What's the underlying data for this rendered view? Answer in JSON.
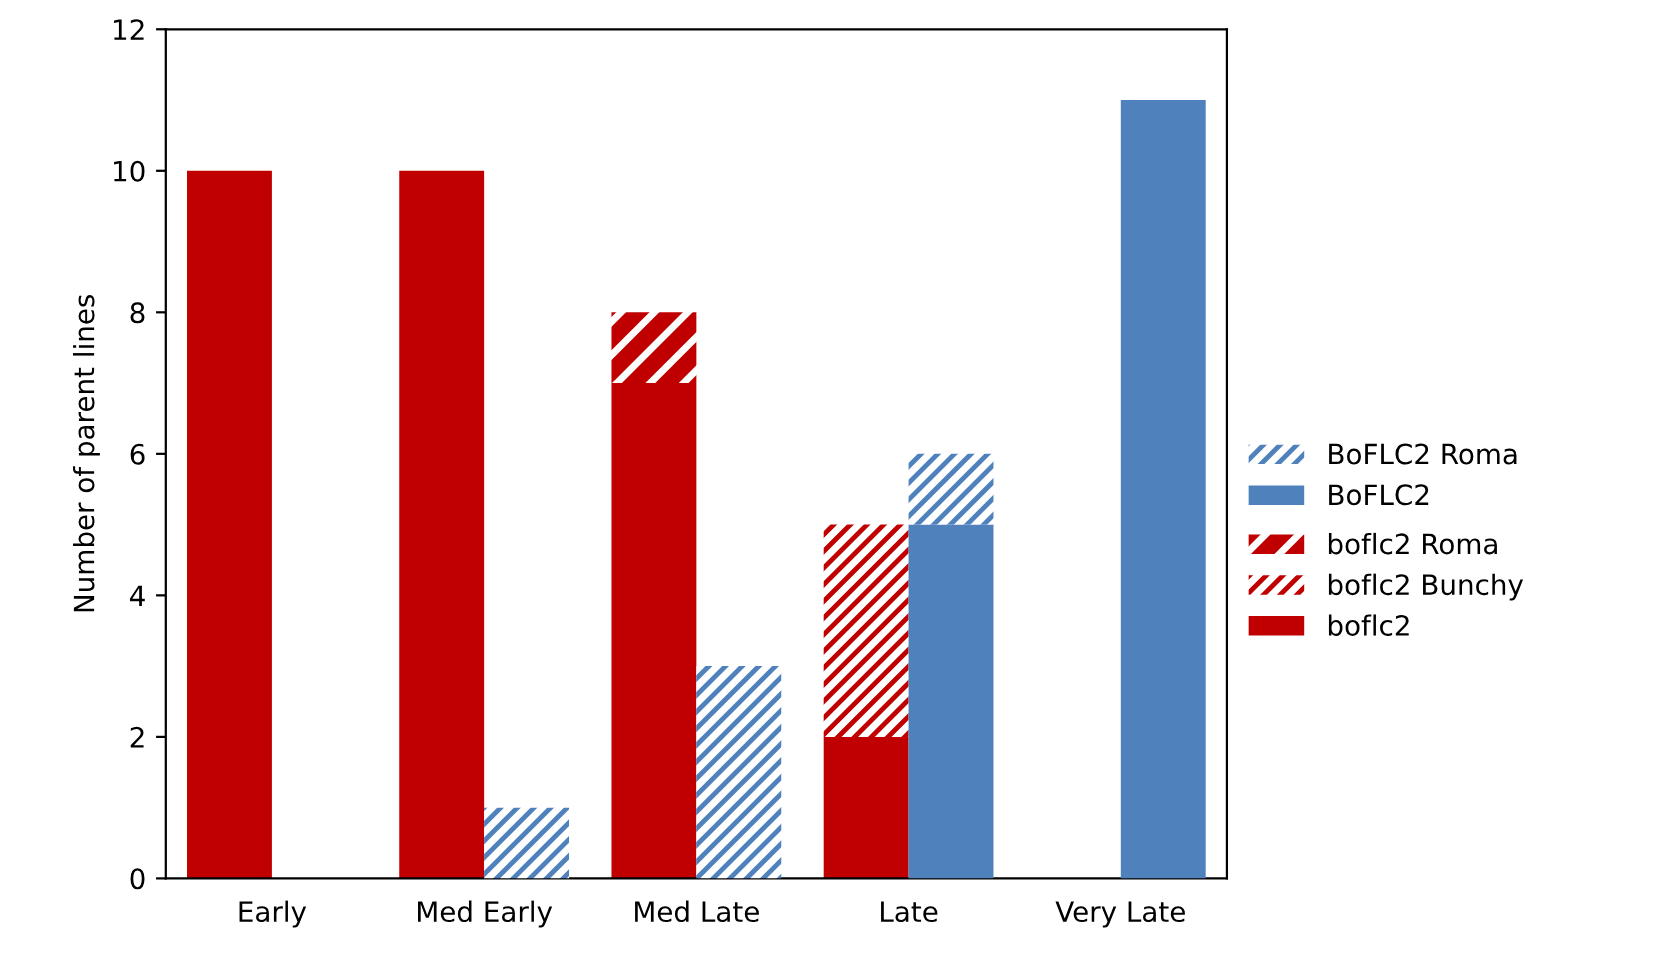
{
  "chart_data": [
    {
      "type": "bar",
      "stacked": true,
      "categories": [
        "Early",
        "Med Early",
        "Med Late",
        "Late",
        "Very Late"
      ],
      "ylabel": "Number of parent lines",
      "ylim": [
        0,
        12
      ],
      "yticks": [
        0,
        2,
        4,
        6,
        8,
        10,
        12
      ],
      "grid": false,
      "legend": "right",
      "series": [
        {
          "name": "boflc2",
          "color": "#c00000",
          "values": [
            10,
            10,
            7,
            2,
            0
          ]
        },
        {
          "name": "boflc2 Bunchy",
          "color": "#c00000",
          "values": [
            0,
            0,
            0,
            3,
            0
          ]
        },
        {
          "name": "boflc2 Roma",
          "color": "#c00000",
          "values": [
            0,
            0,
            1,
            0,
            0
          ]
        }
      ]
    },
    {
      "type": "bar",
      "stacked": true,
      "categories": [
        null,
        null,
        null,
        null,
        null
      ],
      "ylim": [
        0,
        12
      ],
      "yticks": [
        0,
        2,
        4,
        6,
        8,
        10,
        12
      ],
      "grid": false,
      "legend": "right",
      "tick_labels": false,
      "series": [
        {
          "name": "BoFLC2",
          "color": "#4f81bd",
          "values": [
            0,
            0,
            0,
            5,
            11
          ]
        },
        {
          "name": "BoFLC2 Roma",
          "color": "#4f81bd",
          "values": [
            0,
            1,
            3,
            1,
            0
          ]
        }
      ]
    }
  ]
}
